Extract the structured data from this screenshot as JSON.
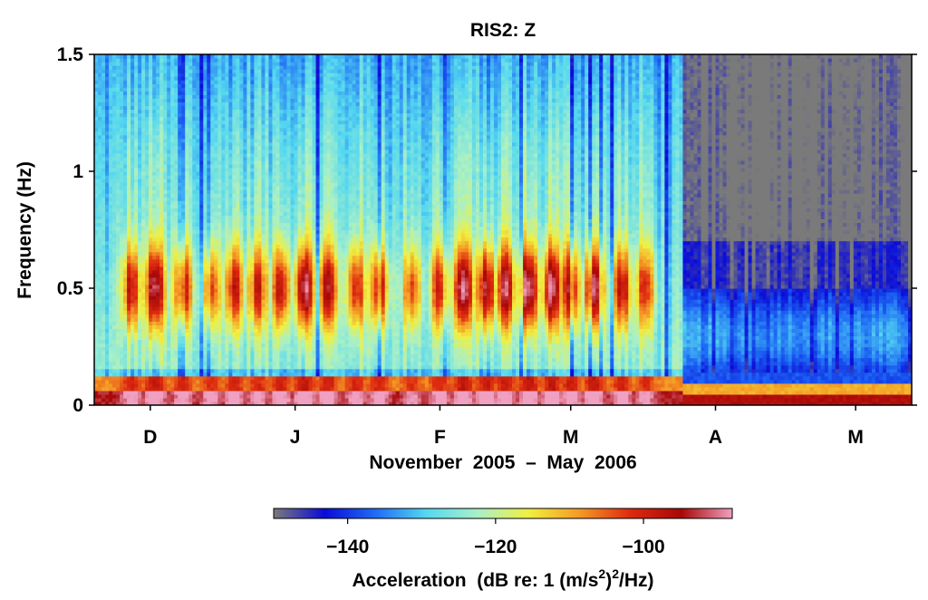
{
  "chart_data": {
    "type": "heatmap",
    "title": "RIS2:  Z",
    "xlabel": "November  2005  –  May  2006",
    "ylabel": "Frequency  (Hz)",
    "x_range": [
      "2005-11-19",
      "2006-05-13"
    ],
    "x_ticks": [
      {
        "label": "D",
        "date": "2005-12-01"
      },
      {
        "label": "J",
        "date": "2006-01-01"
      },
      {
        "label": "F",
        "date": "2006-02-01"
      },
      {
        "label": "M",
        "date": "2006-03-01"
      },
      {
        "label": "A",
        "date": "2006-04-01"
      },
      {
        "label": "M",
        "date": "2006-05-01"
      }
    ],
    "y_range": [
      0,
      1.5
    ],
    "y_ticks": [
      {
        "label": "0",
        "value": 0
      },
      {
        "label": "0.5",
        "value": 0.5
      },
      {
        "label": "1",
        "value": 1
      },
      {
        "label": "1.5",
        "value": 1.5
      }
    ],
    "colorbar": {
      "label_prefix": "Acceleration  (dB re: 1 (m/s",
      "label_sup1": "2",
      "label_mid": ")",
      "label_sup2": "2",
      "label_suffix": "/Hz)",
      "range": [
        -150,
        -88
      ],
      "ticks": [
        {
          "label": "−140",
          "value": -140
        },
        {
          "label": "−120",
          "value": -120
        },
        {
          "label": "−100",
          "value": -100
        }
      ],
      "colors": [
        "#7a7a7a",
        "#0b0bd8",
        "#1f6cf5",
        "#55d8f0",
        "#a8f0c8",
        "#f0f040",
        "#f59a25",
        "#dd2a10",
        "#a80808",
        "#f0a0c0"
      ]
    },
    "features": {
      "microseism_band_hz": [
        0.2,
        0.8
      ],
      "microseism_peak_hz": 0.5,
      "low_freq_band_hz": [
        0.0,
        0.1
      ],
      "transition_date": "2006-03-25",
      "note_regime": "after transition quieter (dark blue/grey) except near 0.05 Hz"
    },
    "events": [
      {
        "date": "2005-11-27",
        "level_db": -105
      },
      {
        "date": "2005-12-02",
        "level_db": -98
      },
      {
        "date": "2005-12-08",
        "level_db": -104
      },
      {
        "date": "2005-12-14",
        "level_db": -108
      },
      {
        "date": "2005-12-19",
        "level_db": -104
      },
      {
        "date": "2005-12-24",
        "level_db": -106
      },
      {
        "date": "2005-12-29",
        "level_db": -103
      },
      {
        "date": "2006-01-03",
        "level_db": -98
      },
      {
        "date": "2006-01-08",
        "level_db": -102
      },
      {
        "date": "2006-01-14",
        "level_db": -106
      },
      {
        "date": "2006-01-19",
        "level_db": -104
      },
      {
        "date": "2006-01-26",
        "level_db": -109
      },
      {
        "date": "2006-02-01",
        "level_db": -106
      },
      {
        "date": "2006-02-06",
        "level_db": -97
      },
      {
        "date": "2006-02-11",
        "level_db": -99
      },
      {
        "date": "2006-02-15",
        "level_db": -100
      },
      {
        "date": "2006-02-20",
        "level_db": -96
      },
      {
        "date": "2006-02-25",
        "level_db": -98
      },
      {
        "date": "2006-03-01",
        "level_db": -102
      },
      {
        "date": "2006-03-06",
        "level_db": -97
      },
      {
        "date": "2006-03-12",
        "level_db": -104
      },
      {
        "date": "2006-03-17",
        "level_db": -108
      }
    ]
  }
}
